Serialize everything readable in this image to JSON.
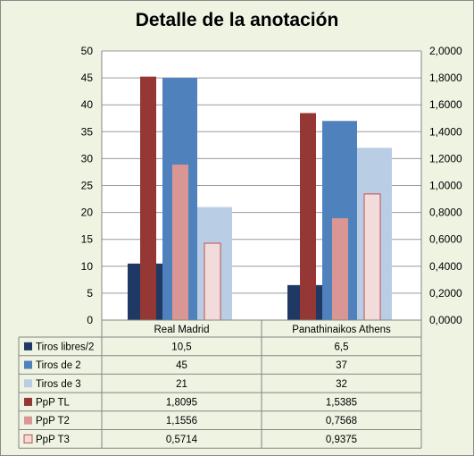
{
  "chart_data": {
    "type": "bar",
    "title": "Detalle de la anotación",
    "categories": [
      "Real Madrid",
      "Panathinaikos Athens"
    ],
    "ylim": [
      0,
      50
    ],
    "y2lim": [
      0,
      2
    ],
    "yticks": [
      "0",
      "5",
      "10",
      "15",
      "20",
      "25",
      "30",
      "35",
      "40",
      "45",
      "50"
    ],
    "y2ticks": [
      "0,0000",
      "0,2000",
      "0,4000",
      "0,6000",
      "0,8000",
      "1,0000",
      "1,2000",
      "1,4000",
      "1,6000",
      "1,8000",
      "2,0000"
    ],
    "grid": true,
    "legend": "data-table",
    "series": [
      {
        "name": "Tiros libres/2",
        "axis": "left",
        "values": [
          10.5,
          6.5
        ],
        "labels": [
          "10,5",
          "6,5"
        ],
        "color": "#1f3864"
      },
      {
        "name": "Tiros de 2",
        "axis": "left",
        "values": [
          45,
          37
        ],
        "labels": [
          "45",
          "37"
        ],
        "color": "#4f81bd"
      },
      {
        "name": "Tiros de 3",
        "axis": "left",
        "values": [
          21,
          32
        ],
        "labels": [
          "21",
          "32"
        ],
        "color": "#b9cde5"
      },
      {
        "name": "PpP TL",
        "axis": "right",
        "values": [
          1.8095,
          1.5385
        ],
        "labels": [
          "1,8095",
          "1,5385"
        ],
        "color": "#953735"
      },
      {
        "name": "PpP T2",
        "axis": "right",
        "values": [
          1.1556,
          0.7568
        ],
        "labels": [
          "1,1556",
          "0,7568"
        ],
        "color": "#d99694"
      },
      {
        "name": "PpP T3",
        "axis": "right",
        "values": [
          0.5714,
          0.9375
        ],
        "labels": [
          "0,5714",
          "0,9375"
        ],
        "color": "#f2dcdb",
        "border": "#c0504d"
      }
    ]
  }
}
